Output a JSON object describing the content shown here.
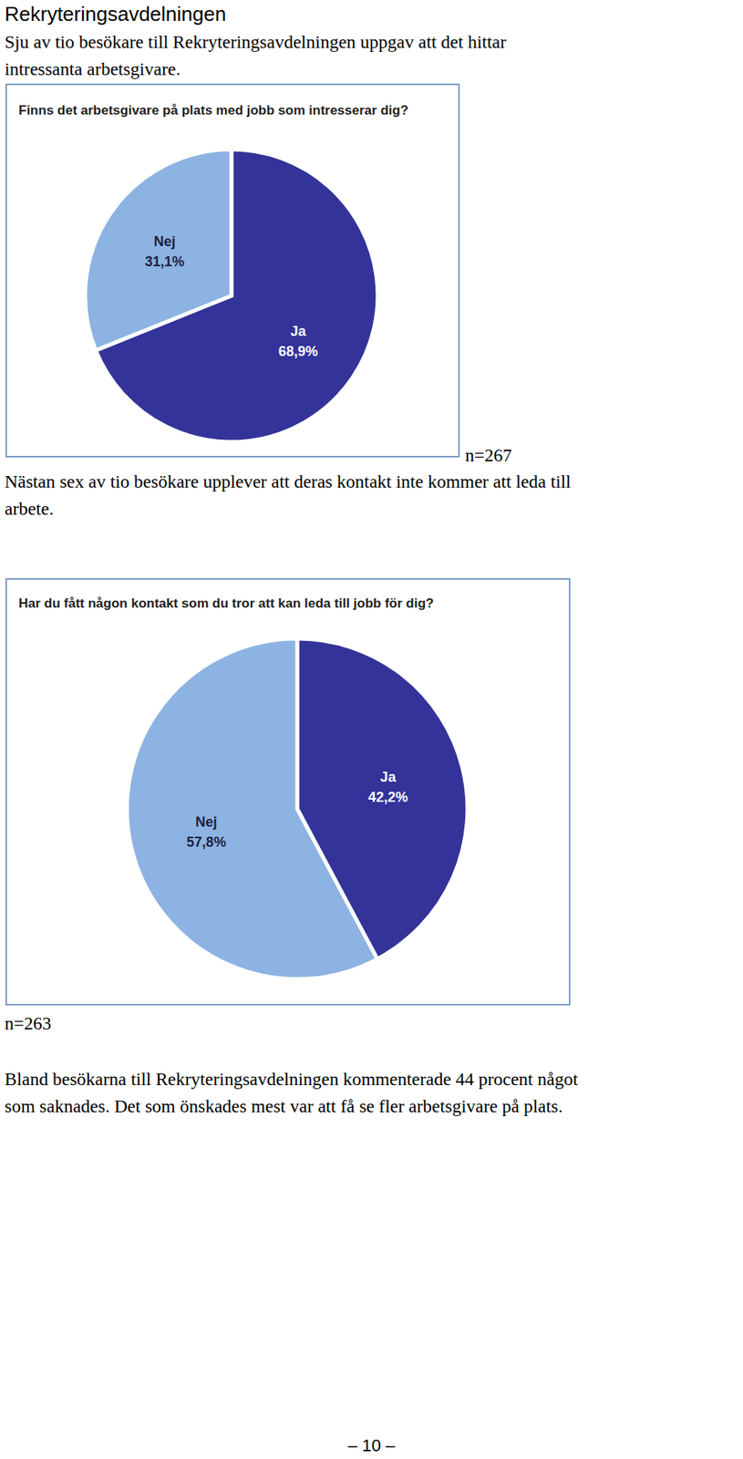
{
  "heading": "Rekryteringsavdelningen",
  "paragraphs": [
    [
      "Sju av tio besökare till Rekryteringsavdelningen uppgav att det hittar",
      "intressanta arbetsgivare."
    ],
    [
      "Nästan sex av tio besökare upplever att deras kontakt inte kommer att leda till",
      "arbete."
    ],
    [
      "Bland besökarna till Rekryteringsavdelningen kommenterade 44 procent något",
      "som saknades. Det som önskades mest var att få se fler arbetsgivare på plats."
    ]
  ],
  "sample_sizes": [
    "n=267",
    "n=263"
  ],
  "page_number": "– 10 –",
  "chart_data": [
    {
      "type": "pie",
      "title": "Finns det arbetsgivare på plats med jobb som intresserar dig?",
      "categories": [
        "Ja",
        "Nej"
      ],
      "values": [
        68.9,
        31.1
      ],
      "value_labels": [
        "68,9%",
        "31,1%"
      ],
      "colors": [
        "#333399",
        "#8db3e2"
      ],
      "data_labels": true
    },
    {
      "type": "pie",
      "title": "Har du fått någon kontakt som du tror att kan leda till jobb för dig?",
      "categories": [
        "Ja",
        "Nej"
      ],
      "values": [
        42.2,
        57.8
      ],
      "value_labels": [
        "42,2%",
        "57,8%"
      ],
      "colors": [
        "#333399",
        "#8db3e2"
      ],
      "data_labels": true
    }
  ]
}
